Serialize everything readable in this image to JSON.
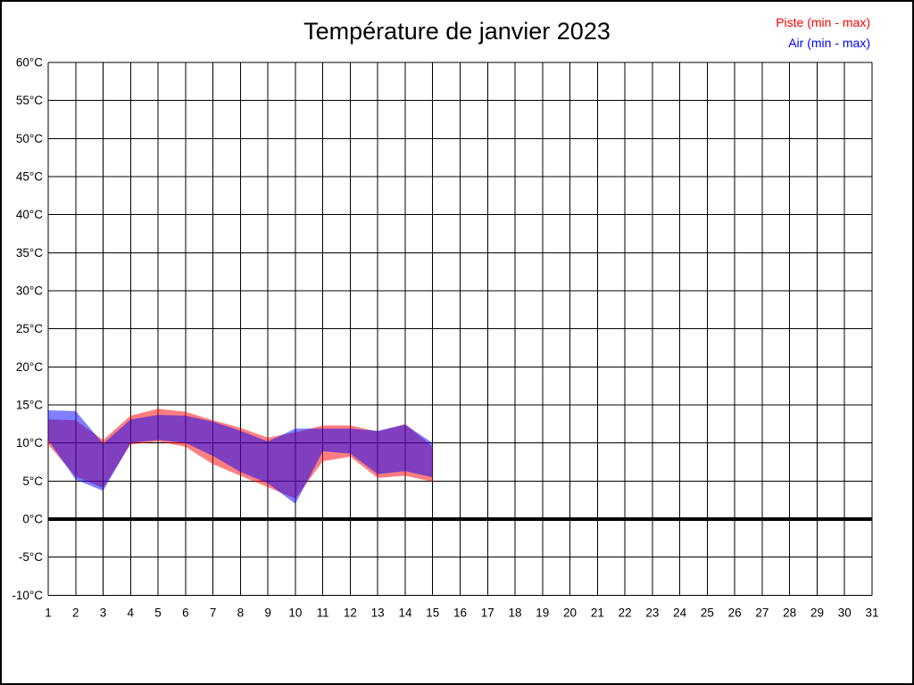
{
  "page": {
    "background": "#ffffff",
    "border_color": "#000000"
  },
  "chart_data": {
    "type": "area",
    "title": "Température de janvier 2023",
    "legend": [
      {
        "label": "Piste (min - max)",
        "color": "#ff0000"
      },
      {
        "label": "Air (min - max)",
        "color": "#0000ff"
      }
    ],
    "xlabel": "",
    "ylabel": "",
    "xlim": [
      1,
      31
    ],
    "xtick_step": 1,
    "ylim": [
      -10,
      60
    ],
    "ytick_step": 5,
    "ytick_suffix": "°C",
    "grid": true,
    "grid_color": "#000000",
    "zero_line": true,
    "zero_line_width": 4,
    "x": [
      1,
      2,
      3,
      4,
      5,
      6,
      7,
      8,
      9,
      10,
      11,
      12,
      13,
      14,
      15
    ],
    "series": [
      {
        "name": "Piste (min - max)",
        "fill": "rgba(255,0,0,0.5)",
        "max": [
          13.1,
          13.0,
          10.4,
          13.6,
          14.5,
          14.1,
          13.0,
          12.0,
          10.7,
          11.4,
          12.3,
          12.3,
          11.5,
          12.5,
          9.5
        ],
        "min": [
          9.8,
          5.6,
          4.1,
          9.8,
          10.2,
          9.5,
          7.2,
          5.7,
          4.2,
          2.7,
          7.6,
          8.2,
          5.4,
          5.7,
          4.9
        ]
      },
      {
        "name": "Air (min - max)",
        "fill": "rgba(0,0,255,0.5)",
        "max": [
          14.3,
          14.2,
          9.9,
          13.1,
          13.7,
          13.6,
          12.8,
          11.6,
          10.2,
          11.9,
          11.9,
          11.9,
          11.6,
          12.4,
          10.0
        ],
        "min": [
          10.4,
          5.2,
          3.7,
          10.0,
          10.4,
          10.0,
          8.3,
          6.2,
          4.7,
          2.0,
          8.9,
          8.6,
          5.9,
          6.3,
          5.5
        ]
      }
    ]
  }
}
